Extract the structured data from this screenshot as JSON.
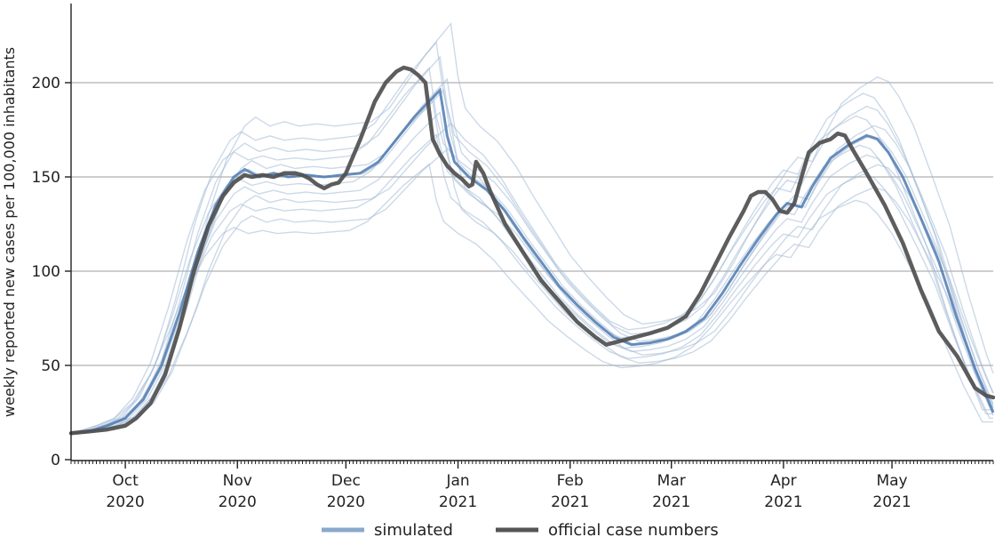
{
  "chart_data": {
    "type": "line",
    "title": "",
    "xlabel": "",
    "ylabel": "weekly reported new cases per 100,000 inhabitants",
    "x_range_days": [
      0,
      255
    ],
    "ylim": [
      0,
      240
    ],
    "y_ticks": [
      0,
      50,
      100,
      150,
      200
    ],
    "gridlines": "horizontal",
    "x_ticks": [
      {
        "day": 15,
        "line1": "Oct",
        "line2": "2020"
      },
      {
        "day": 46,
        "line1": "Nov",
        "line2": "2020"
      },
      {
        "day": 76,
        "line1": "Dec",
        "line2": "2020"
      },
      {
        "day": 107,
        "line1": "Jan",
        "line2": "2021"
      },
      {
        "day": 138,
        "line1": "Feb",
        "line2": "2021"
      },
      {
        "day": 166,
        "line1": "Mar",
        "line2": "2021"
      },
      {
        "day": 197,
        "line1": "Apr",
        "line2": "2021"
      },
      {
        "day": 227,
        "line1": "May",
        "line2": "2021"
      }
    ],
    "legend": {
      "placement": "bottom-center",
      "entries": [
        {
          "label": "simulated",
          "color": "#8aa8cc"
        },
        {
          "label": "official case numbers",
          "color": "#555555"
        }
      ]
    },
    "series": [
      {
        "name": "simulated (median)",
        "color": "#4d7ab0",
        "points": [
          [
            0,
            14
          ],
          [
            5,
            15
          ],
          [
            10,
            18
          ],
          [
            15,
            22
          ],
          [
            20,
            32
          ],
          [
            25,
            50
          ],
          [
            30,
            78
          ],
          [
            35,
            110
          ],
          [
            40,
            135
          ],
          [
            45,
            150
          ],
          [
            48,
            154
          ],
          [
            52,
            150
          ],
          [
            56,
            152
          ],
          [
            60,
            150
          ],
          [
            65,
            151
          ],
          [
            70,
            150
          ],
          [
            75,
            151
          ],
          [
            80,
            152
          ],
          [
            85,
            158
          ],
          [
            90,
            170
          ],
          [
            95,
            182
          ],
          [
            100,
            192
          ],
          [
            102,
            196
          ],
          [
            104,
            172
          ],
          [
            106,
            158
          ],
          [
            110,
            150
          ],
          [
            115,
            143
          ],
          [
            120,
            132
          ],
          [
            125,
            118
          ],
          [
            130,
            105
          ],
          [
            135,
            92
          ],
          [
            140,
            82
          ],
          [
            145,
            73
          ],
          [
            150,
            65
          ],
          [
            155,
            61
          ],
          [
            160,
            62
          ],
          [
            165,
            64
          ],
          [
            170,
            68
          ],
          [
            175,
            75
          ],
          [
            180,
            88
          ],
          [
            185,
            103
          ],
          [
            190,
            117
          ],
          [
            195,
            130
          ],
          [
            198,
            136
          ],
          [
            200,
            135
          ],
          [
            202,
            134
          ],
          [
            205,
            145
          ],
          [
            210,
            160
          ],
          [
            215,
            167
          ],
          [
            220,
            172
          ],
          [
            223,
            170
          ],
          [
            226,
            163
          ],
          [
            230,
            150
          ],
          [
            235,
            128
          ],
          [
            240,
            105
          ],
          [
            245,
            75
          ],
          [
            250,
            48
          ],
          [
            255,
            25
          ]
        ]
      },
      {
        "name": "official case numbers",
        "color": "#4f4f4f",
        "points": [
          [
            0,
            14
          ],
          [
            5,
            15
          ],
          [
            10,
            16
          ],
          [
            15,
            18
          ],
          [
            18,
            22
          ],
          [
            22,
            30
          ],
          [
            26,
            45
          ],
          [
            30,
            70
          ],
          [
            34,
            100
          ],
          [
            38,
            124
          ],
          [
            42,
            140
          ],
          [
            45,
            147
          ],
          [
            48,
            151
          ],
          [
            50,
            150
          ],
          [
            53,
            151
          ],
          [
            56,
            150
          ],
          [
            59,
            152
          ],
          [
            62,
            152
          ],
          [
            64,
            151
          ],
          [
            66,
            149
          ],
          [
            68,
            146
          ],
          [
            70,
            144
          ],
          [
            72,
            146
          ],
          [
            74,
            147
          ],
          [
            76,
            152
          ],
          [
            80,
            170
          ],
          [
            84,
            190
          ],
          [
            87,
            200
          ],
          [
            90,
            206
          ],
          [
            92,
            208
          ],
          [
            94,
            207
          ],
          [
            96,
            204
          ],
          [
            98,
            200
          ],
          [
            100,
            170
          ],
          [
            102,
            162
          ],
          [
            104,
            156
          ],
          [
            106,
            152
          ],
          [
            108,
            149
          ],
          [
            110,
            145
          ],
          [
            111,
            146
          ],
          [
            112,
            158
          ],
          [
            114,
            152
          ],
          [
            116,
            142
          ],
          [
            120,
            125
          ],
          [
            125,
            110
          ],
          [
            130,
            95
          ],
          [
            135,
            84
          ],
          [
            140,
            73
          ],
          [
            145,
            65
          ],
          [
            148,
            61
          ],
          [
            152,
            63
          ],
          [
            156,
            65
          ],
          [
            160,
            67
          ],
          [
            165,
            70
          ],
          [
            170,
            76
          ],
          [
            174,
            88
          ],
          [
            178,
            103
          ],
          [
            182,
            118
          ],
          [
            186,
            132
          ],
          [
            188,
            140
          ],
          [
            190,
            142
          ],
          [
            192,
            142
          ],
          [
            194,
            138
          ],
          [
            196,
            132
          ],
          [
            198,
            131
          ],
          [
            200,
            136
          ],
          [
            202,
            150
          ],
          [
            204,
            163
          ],
          [
            207,
            168
          ],
          [
            210,
            170
          ],
          [
            212,
            173
          ],
          [
            214,
            172
          ],
          [
            216,
            165
          ],
          [
            220,
            152
          ],
          [
            225,
            135
          ],
          [
            230,
            115
          ],
          [
            235,
            90
          ],
          [
            240,
            68
          ],
          [
            245,
            55
          ],
          [
            250,
            38
          ],
          [
            253,
            34
          ],
          [
            255,
            33
          ]
        ]
      }
    ],
    "simulated_spread": {
      "description": "many faint simulated trajectories around the median",
      "peak_scale_factors": [
        0.8,
        0.84,
        0.88,
        0.91,
        0.94,
        0.97,
        1.0,
        1.03,
        1.06,
        1.09,
        1.13,
        1.18
      ],
      "time_shift_days": [
        -3,
        2,
        -1,
        3,
        0,
        -2,
        1,
        2,
        -3,
        0,
        -1,
        3
      ]
    }
  }
}
